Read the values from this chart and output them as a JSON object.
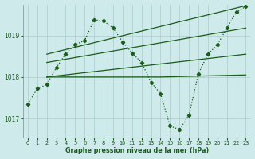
{
  "background_color": "#ceeaea",
  "grid_color": "#a8cccc",
  "line_color": "#1a5c1a",
  "title": "Graphe pression niveau de la mer (hPa)",
  "ylim": [
    1016.55,
    1019.75
  ],
  "yticks": [
    1017,
    1018,
    1019
  ],
  "xlim": [
    -0.5,
    23.5
  ],
  "xticks": [
    0,
    1,
    2,
    3,
    4,
    5,
    6,
    7,
    8,
    9,
    10,
    11,
    12,
    13,
    14,
    15,
    16,
    17,
    18,
    19,
    20,
    21,
    22,
    23
  ],
  "series": [
    {
      "x": [
        0,
        1,
        2,
        3,
        4,
        5,
        6,
        7,
        8,
        9,
        10,
        11,
        12,
        13,
        14,
        15,
        16,
        17,
        18,
        19,
        20,
        21,
        22,
        23
      ],
      "y": [
        1017.35,
        1017.72,
        1017.82,
        1018.22,
        1018.56,
        1018.78,
        1018.88,
        1019.38,
        1019.35,
        1019.18,
        1018.85,
        1018.58,
        1018.35,
        1017.87,
        1017.6,
        1016.82,
        1016.73,
        1017.08,
        1018.08,
        1018.55,
        1018.78,
        1019.18,
        1019.57,
        1019.7
      ],
      "marker": "D",
      "markersize": 2.2,
      "linewidth": 0.9,
      "linestyle": "dotted"
    },
    {
      "x": [
        2,
        23
      ],
      "y": [
        1018.55,
        1019.72
      ],
      "marker": null,
      "linewidth": 0.9,
      "linestyle": "solid"
    },
    {
      "x": [
        2,
        23
      ],
      "y": [
        1018.35,
        1019.18
      ],
      "marker": null,
      "linewidth": 0.9,
      "linestyle": "solid"
    },
    {
      "x": [
        2,
        23
      ],
      "y": [
        1018.0,
        1018.55
      ],
      "marker": null,
      "linewidth": 0.9,
      "linestyle": "solid"
    },
    {
      "x": [
        2,
        14,
        23
      ],
      "y": [
        1018.0,
        1018.0,
        1018.05
      ],
      "marker": null,
      "linewidth": 0.9,
      "linestyle": "solid"
    }
  ]
}
